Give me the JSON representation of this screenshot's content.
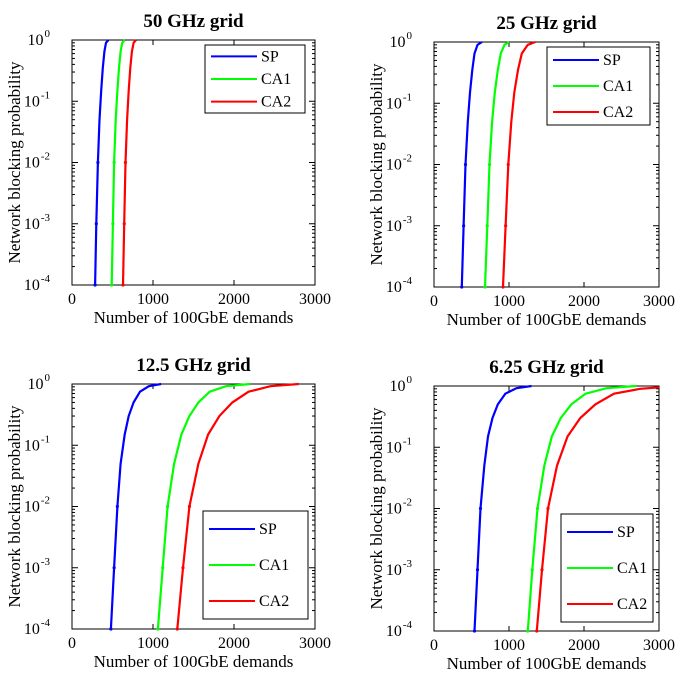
{
  "colors": {
    "SP": "#0000ff",
    "CA1": "#00ff00",
    "CA2": "#ff0000",
    "axis": "#000000",
    "background": "#ffffff"
  },
  "chart_data": [
    {
      "type": "line",
      "title": "50 GHz grid",
      "xlabel": "Number of 100GbE demands",
      "ylabel": "Network blocking probability",
      "xlim": [
        0,
        3000
      ],
      "ylim": [
        0.0001,
        1
      ],
      "yscale": "log",
      "xticks": [
        "0",
        "1000",
        "2000",
        "3000"
      ],
      "yticks": [
        {
          "base": "10",
          "exp": "-4"
        },
        {
          "base": "10",
          "exp": "-3"
        },
        {
          "base": "10",
          "exp": "-2"
        },
        {
          "base": "10",
          "exp": "-1"
        },
        {
          "base": "10",
          "exp": "0"
        }
      ],
      "legend_position": "top-right",
      "series": [
        {
          "name": "SP",
          "x": [
            285,
            300,
            320,
            340,
            360,
            380,
            400,
            420,
            450
          ],
          "y": [
            0.0001,
            0.001,
            0.01,
            0.05,
            0.15,
            0.35,
            0.65,
            0.9,
            1
          ]
        },
        {
          "name": "CA1",
          "x": [
            490,
            505,
            520,
            540,
            560,
            580,
            600,
            620,
            650
          ],
          "y": [
            0.0001,
            0.001,
            0.01,
            0.05,
            0.15,
            0.35,
            0.65,
            0.9,
            1
          ]
        },
        {
          "name": "CA2",
          "x": [
            630,
            645,
            660,
            680,
            700,
            720,
            740,
            760,
            790
          ],
          "y": [
            0.0001,
            0.001,
            0.01,
            0.05,
            0.15,
            0.35,
            0.65,
            0.9,
            1
          ]
        }
      ]
    },
    {
      "type": "line",
      "title": "25 GHz grid",
      "xlabel": "Number of 100GbE demands",
      "ylabel": "Network blocking probability",
      "xlim": [
        0,
        3000
      ],
      "ylim": [
        0.0001,
        1
      ],
      "yscale": "log",
      "xticks": [
        "0",
        "1000",
        "2000",
        "3000"
      ],
      "yticks": [
        {
          "base": "10",
          "exp": "-4"
        },
        {
          "base": "10",
          "exp": "-3"
        },
        {
          "base": "10",
          "exp": "-2"
        },
        {
          "base": "10",
          "exp": "-1"
        },
        {
          "base": "10",
          "exp": "0"
        }
      ],
      "legend_position": "top-right",
      "series": [
        {
          "name": "SP",
          "x": [
            370,
            395,
            420,
            450,
            480,
            510,
            540,
            580,
            640
          ],
          "y": [
            0.0001,
            0.001,
            0.01,
            0.05,
            0.15,
            0.35,
            0.65,
            0.9,
            1
          ]
        },
        {
          "name": "CA1",
          "x": [
            680,
            710,
            740,
            775,
            810,
            850,
            890,
            940,
            1000
          ],
          "y": [
            0.0001,
            0.001,
            0.01,
            0.05,
            0.15,
            0.35,
            0.65,
            0.9,
            1
          ]
        },
        {
          "name": "CA2",
          "x": [
            920,
            955,
            990,
            1030,
            1070,
            1120,
            1170,
            1250,
            1350
          ],
          "y": [
            0.0001,
            0.001,
            0.01,
            0.05,
            0.15,
            0.35,
            0.65,
            0.9,
            1
          ]
        }
      ]
    },
    {
      "type": "line",
      "title": "12.5 GHz grid",
      "xlabel": "Number of 100GbE demands",
      "ylabel": "Network blocking probability",
      "xlim": [
        0,
        3000
      ],
      "ylim": [
        0.0001,
        1
      ],
      "yscale": "log",
      "xticks": [
        "0",
        "1000",
        "2000",
        "3000"
      ],
      "yticks": [
        {
          "base": "10",
          "exp": "-4"
        },
        {
          "base": "10",
          "exp": "-3"
        },
        {
          "base": "10",
          "exp": "-2"
        },
        {
          "base": "10",
          "exp": "-1"
        },
        {
          "base": "10",
          "exp": "0"
        }
      ],
      "legend_position": "bottom-right",
      "series": [
        {
          "name": "SP",
          "x": [
            480,
            520,
            560,
            600,
            650,
            700,
            760,
            840,
            950,
            1100
          ],
          "y": [
            0.0001,
            0.001,
            0.01,
            0.05,
            0.15,
            0.3,
            0.5,
            0.75,
            0.92,
            1
          ]
        },
        {
          "name": "CA1",
          "x": [
            1060,
            1120,
            1180,
            1260,
            1350,
            1450,
            1560,
            1700,
            1900,
            2200
          ],
          "y": [
            0.0001,
            0.001,
            0.01,
            0.05,
            0.15,
            0.3,
            0.5,
            0.75,
            0.92,
            1
          ]
        },
        {
          "name": "CA2",
          "x": [
            1300,
            1370,
            1450,
            1560,
            1680,
            1820,
            1980,
            2180,
            2450,
            2800
          ],
          "y": [
            0.0001,
            0.001,
            0.01,
            0.05,
            0.15,
            0.3,
            0.5,
            0.75,
            0.92,
            1
          ]
        }
      ]
    },
    {
      "type": "line",
      "title": "6.25 GHz grid",
      "xlabel": "Number of 100GbE demands",
      "ylabel": "Network blocking probability",
      "xlim": [
        0,
        3000
      ],
      "ylim": [
        0.0001,
        1
      ],
      "yscale": "log",
      "xticks": [
        "0",
        "1000",
        "2000",
        "3000"
      ],
      "yticks": [
        {
          "base": "10",
          "exp": "-4"
        },
        {
          "base": "10",
          "exp": "-3"
        },
        {
          "base": "10",
          "exp": "-2"
        },
        {
          "base": "10",
          "exp": "-1"
        },
        {
          "base": "10",
          "exp": "0"
        }
      ],
      "legend_position": "bottom-right",
      "series": [
        {
          "name": "SP",
          "x": [
            540,
            580,
            620,
            670,
            720,
            780,
            850,
            950,
            1100,
            1300
          ],
          "y": [
            0.0001,
            0.001,
            0.01,
            0.05,
            0.15,
            0.3,
            0.5,
            0.75,
            0.92,
            1
          ]
        },
        {
          "name": "CA1",
          "x": [
            1250,
            1310,
            1380,
            1470,
            1570,
            1690,
            1830,
            2020,
            2300,
            2700
          ],
          "y": [
            0.0001,
            0.001,
            0.01,
            0.05,
            0.15,
            0.3,
            0.5,
            0.75,
            0.92,
            1
          ]
        },
        {
          "name": "CA2",
          "x": [
            1370,
            1440,
            1520,
            1640,
            1780,
            1950,
            2150,
            2400,
            2750,
            3000
          ],
          "y": [
            0.0001,
            0.001,
            0.01,
            0.05,
            0.15,
            0.3,
            0.5,
            0.75,
            0.9,
            0.95
          ]
        }
      ]
    }
  ]
}
